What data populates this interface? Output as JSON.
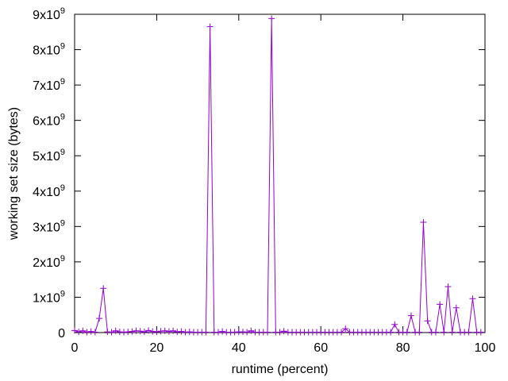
{
  "chart_data": {
    "type": "line",
    "title": "",
    "xlabel": "runtime (percent)",
    "ylabel": "working set size (bytes)",
    "xlim": [
      0,
      100
    ],
    "ylim": [
      0,
      9000000000
    ],
    "grid": false,
    "legend": "none",
    "series_color": "#9400d3",
    "marker": "plus",
    "x_ticks": [
      {
        "value": 0,
        "label": "0"
      },
      {
        "value": 20,
        "label": "20"
      },
      {
        "value": 40,
        "label": "40"
      },
      {
        "value": 60,
        "label": "60"
      },
      {
        "value": 80,
        "label": "80"
      },
      {
        "value": 100,
        "label": "100"
      }
    ],
    "y_ticks": [
      {
        "value": 0,
        "base": "0",
        "exp": ""
      },
      {
        "value": 1000000000,
        "base": "1x10",
        "exp": "9"
      },
      {
        "value": 2000000000,
        "base": "2x10",
        "exp": "9"
      },
      {
        "value": 3000000000,
        "base": "3x10",
        "exp": "9"
      },
      {
        "value": 4000000000,
        "base": "4x10",
        "exp": "9"
      },
      {
        "value": 5000000000,
        "base": "5x10",
        "exp": "9"
      },
      {
        "value": 6000000000,
        "base": "6x10",
        "exp": "9"
      },
      {
        "value": 7000000000,
        "base": "7x10",
        "exp": "9"
      },
      {
        "value": 8000000000,
        "base": "8x10",
        "exp": "9"
      },
      {
        "value": 9000000000,
        "base": "9x10",
        "exp": "9"
      }
    ],
    "series": [
      {
        "x": [
          0,
          1,
          2,
          3,
          4,
          5,
          6,
          7,
          8,
          9,
          10,
          11,
          12,
          13,
          14,
          15,
          16,
          17,
          18,
          19,
          20,
          21,
          22,
          23,
          24,
          25,
          26,
          27,
          28,
          29,
          30,
          31,
          32,
          33,
          34,
          35,
          36,
          37,
          38,
          39,
          40,
          41,
          42,
          43,
          44,
          45,
          46,
          47,
          48,
          49,
          50,
          51,
          52,
          53,
          54,
          55,
          56,
          57,
          58,
          59,
          60,
          61,
          62,
          63,
          64,
          65,
          66,
          67,
          68,
          69,
          70,
          71,
          72,
          73,
          74,
          75,
          76,
          77,
          78,
          79,
          80,
          81,
          82,
          83,
          84,
          85,
          86,
          87,
          88,
          89,
          90,
          91,
          92,
          93,
          94,
          95,
          96,
          97,
          98,
          99
        ],
        "values": [
          60000000,
          20000000,
          50000000,
          10000000,
          30000000,
          10000000,
          400000000,
          1250000000,
          20000000,
          10000000,
          50000000,
          20000000,
          10000000,
          20000000,
          30000000,
          50000000,
          40000000,
          20000000,
          60000000,
          30000000,
          20000000,
          40000000,
          50000000,
          30000000,
          50000000,
          20000000,
          30000000,
          10000000,
          20000000,
          10000000,
          10000000,
          10000000,
          10000000,
          8650000000,
          10000000,
          10000000,
          30000000,
          10000000,
          10000000,
          10000000,
          20000000,
          20000000,
          10000000,
          50000000,
          10000000,
          10000000,
          10000000,
          10000000,
          8880000000,
          10000000,
          10000000,
          40000000,
          10000000,
          10000000,
          10000000,
          10000000,
          10000000,
          10000000,
          10000000,
          10000000,
          10000000,
          10000000,
          10000000,
          10000000,
          10000000,
          10000000,
          110000000,
          10000000,
          10000000,
          10000000,
          10000000,
          10000000,
          10000000,
          10000000,
          10000000,
          10000000,
          10000000,
          10000000,
          230000000,
          10000000,
          10000000,
          10000000,
          480000000,
          10000000,
          10000000,
          3120000000,
          330000000,
          10000000,
          10000000,
          800000000,
          10000000,
          1300000000,
          10000000,
          700000000,
          10000000,
          10000000,
          10000000,
          960000000,
          10000000,
          10000000
        ]
      }
    ]
  }
}
